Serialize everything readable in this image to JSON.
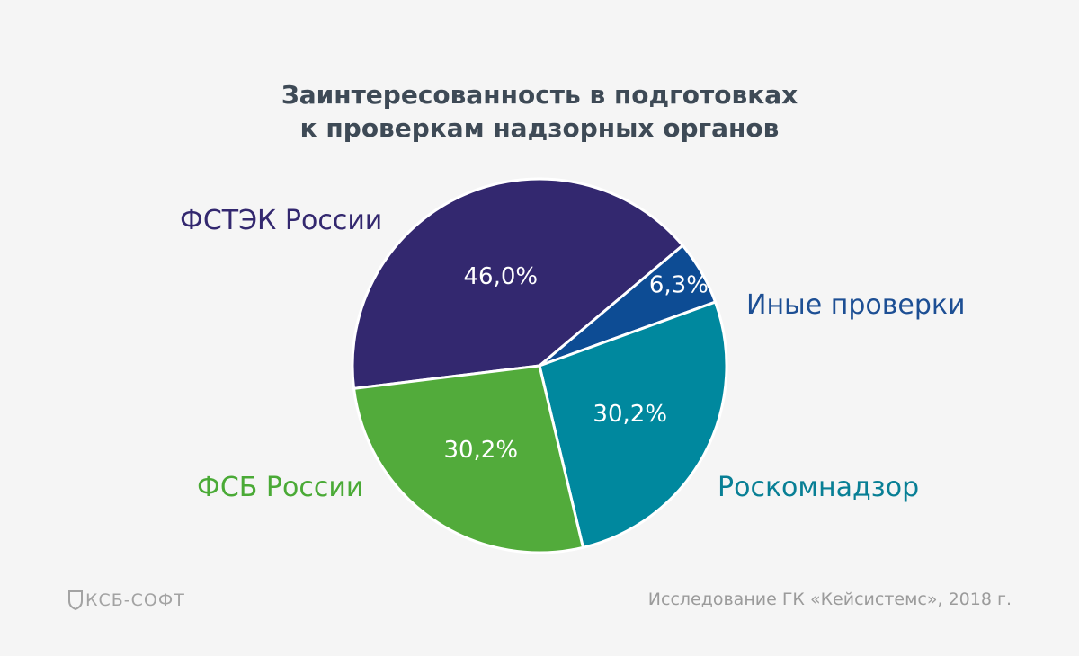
{
  "colors": {
    "background": "#f5f5f5",
    "title": "#3e4a56",
    "footer": "#9b9b9b"
  },
  "logo": {
    "text": "КСБ-СОФТ"
  },
  "source": "Исследование ГК «Кейсистемс», 2018 г.",
  "chart_data": {
    "type": "pie",
    "title": [
      "Заинтересованность в подготовках",
      "к проверкам надзорных органов"
    ],
    "slices": [
      {
        "label": "ФСТЭК России",
        "value": 46.0,
        "value_label": "46,0%",
        "color": "#33286f",
        "label_color": "#33286f"
      },
      {
        "label": "Иные проверки",
        "value": 6.3,
        "value_label": "6,3%",
        "color": "#0d4c94",
        "label_color": "#1d4f94"
      },
      {
        "label": "Роскомнадзор",
        "value": 30.2,
        "value_label": "30,2%",
        "color": "#00889e",
        "label_color": "#087f95"
      },
      {
        "label": "ФСБ России",
        "value": 30.2,
        "value_label": "30,2%",
        "color": "#52ab3b",
        "label_color": "#4aaa36"
      }
    ],
    "legend_placement": "outside labels"
  }
}
